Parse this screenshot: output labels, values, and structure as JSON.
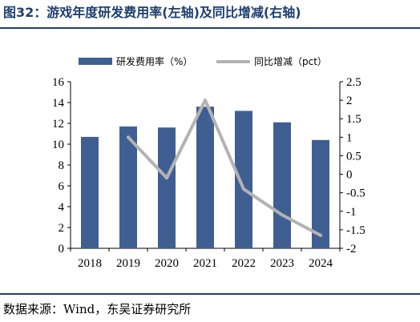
{
  "title": "图32：游戏年度研发费用率(左轴)及同比增减(右轴)",
  "source": "数据来源：Wind，东吴证券研究所",
  "colors": {
    "bar": "#3f5f93",
    "line": "#b3b3b3",
    "title": "#1f3f6e"
  },
  "chart_data": {
    "type": "bar",
    "categories": [
      "2018",
      "2019",
      "2020",
      "2021",
      "2022",
      "2023",
      "2024"
    ],
    "series": [
      {
        "name": "研发费用率（%）",
        "type": "bar",
        "axis": "left",
        "values": [
          10.7,
          11.7,
          11.6,
          13.6,
          13.2,
          12.1,
          10.4
        ]
      },
      {
        "name": "同比增减（pct）",
        "type": "line",
        "axis": "right",
        "values": [
          null,
          1.0,
          -0.1,
          2.0,
          -0.4,
          -1.1,
          -1.65
        ]
      }
    ],
    "y_left": {
      "ylim": [
        0,
        16
      ],
      "ticks": [
        "0",
        "2",
        "4",
        "6",
        "8",
        "10",
        "12",
        "14",
        "16"
      ]
    },
    "y_right": {
      "ylim": [
        -2,
        2.5
      ],
      "ticks": [
        "-2",
        "-1.5",
        "-1",
        "-0.5",
        "0",
        "0.5",
        "1",
        "1.5",
        "2",
        "2.5"
      ]
    },
    "legend_position": "top",
    "grid": false
  }
}
